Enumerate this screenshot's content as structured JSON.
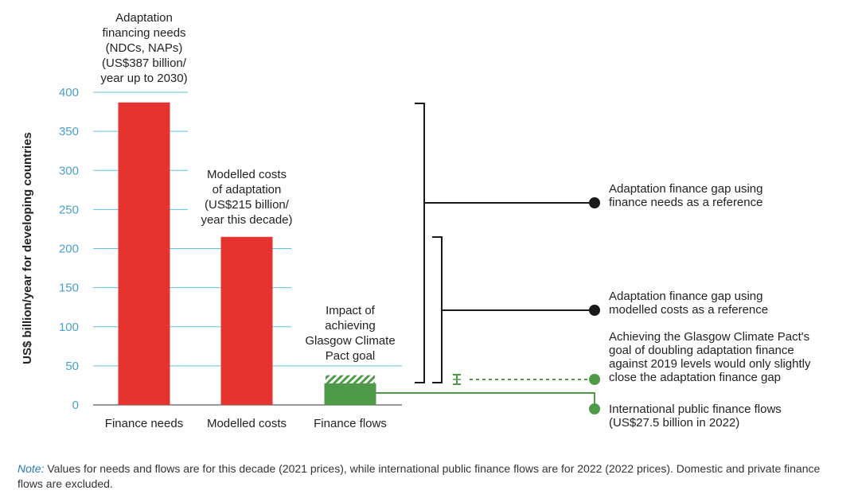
{
  "chart_data": {
    "type": "bar",
    "ylabel": "US$ billion/year for developing countries",
    "ylim": [
      0,
      400
    ],
    "yticks": [
      0,
      50,
      100,
      150,
      200,
      250,
      300,
      350,
      400
    ],
    "grid": true,
    "categories": [
      "Finance needs",
      "Modelled costs",
      "Finance flows"
    ],
    "values": [
      387,
      215,
      27.5
    ],
    "glasgow_impact_value": 38,
    "colors": {
      "needs": "#e5342f",
      "flows": "#4f9a48",
      "grid": "#5bc3e6",
      "bracket": "#1a1a1a",
      "flows_line": "#4f9a48"
    },
    "bar_annotations": [
      [
        "Adaptation",
        "financing needs",
        "(NDCs, NAPs)",
        "(US$387 billion/",
        "year up to 2030)"
      ],
      [
        "Modelled costs",
        "of adaptation",
        "(US$215 billion/",
        "year this decade)"
      ],
      [
        "Impact of",
        "achieving",
        "Glasgow Climate",
        "Pact goal"
      ]
    ],
    "right_annotations": {
      "gap_needs": [
        "Adaptation finance gap using",
        "finance needs as a reference"
      ],
      "gap_costs": [
        "Adaptation finance gap using",
        "modelled costs as a reference"
      ],
      "glasgow": [
        "Achieving the Glasgow Climate Pact's",
        "goal of doubling adaptation finance",
        "against 2019 levels would only slightly",
        "close the adaptation finance gap"
      ],
      "flows": [
        "International public finance flows",
        "(US$27.5 billion in 2022)"
      ]
    }
  },
  "note": {
    "lead": "Note:",
    "text": " Values for needs and flows are for this decade (2021 prices), while international public finance flows are for 2022 (2022 prices). Domestic and private finance flows are excluded."
  }
}
